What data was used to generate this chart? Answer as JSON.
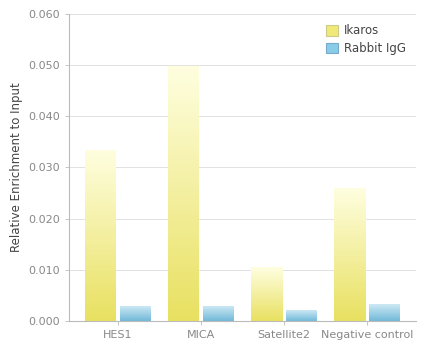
{
  "categories": [
    "HES1",
    "MICA",
    "Satellite2",
    "Negative control"
  ],
  "ikaros_values": [
    0.0335,
    0.0498,
    0.0105,
    0.026
  ],
  "rabbit_igg_values": [
    0.003,
    0.003,
    0.0022,
    0.0033
  ],
  "ikaros_color_top": "#fefee0",
  "ikaros_color_bottom": "#e8e060",
  "rabbit_color_top": "#cce8f4",
  "rabbit_color_bottom": "#70b8d8",
  "ylabel": "Relative Enrichment to Input",
  "ylim": [
    0,
    0.06
  ],
  "yticks": [
    0.0,
    0.01,
    0.02,
    0.03,
    0.04,
    0.05,
    0.06
  ],
  "legend_labels": [
    "Ikaros",
    "Rabbit IgG"
  ],
  "bar_width": 0.38,
  "bar_gap": 0.04,
  "background_color": "#ffffff",
  "axis_fontsize": 8.5,
  "tick_fontsize": 8.0,
  "legend_fontsize": 8.5
}
